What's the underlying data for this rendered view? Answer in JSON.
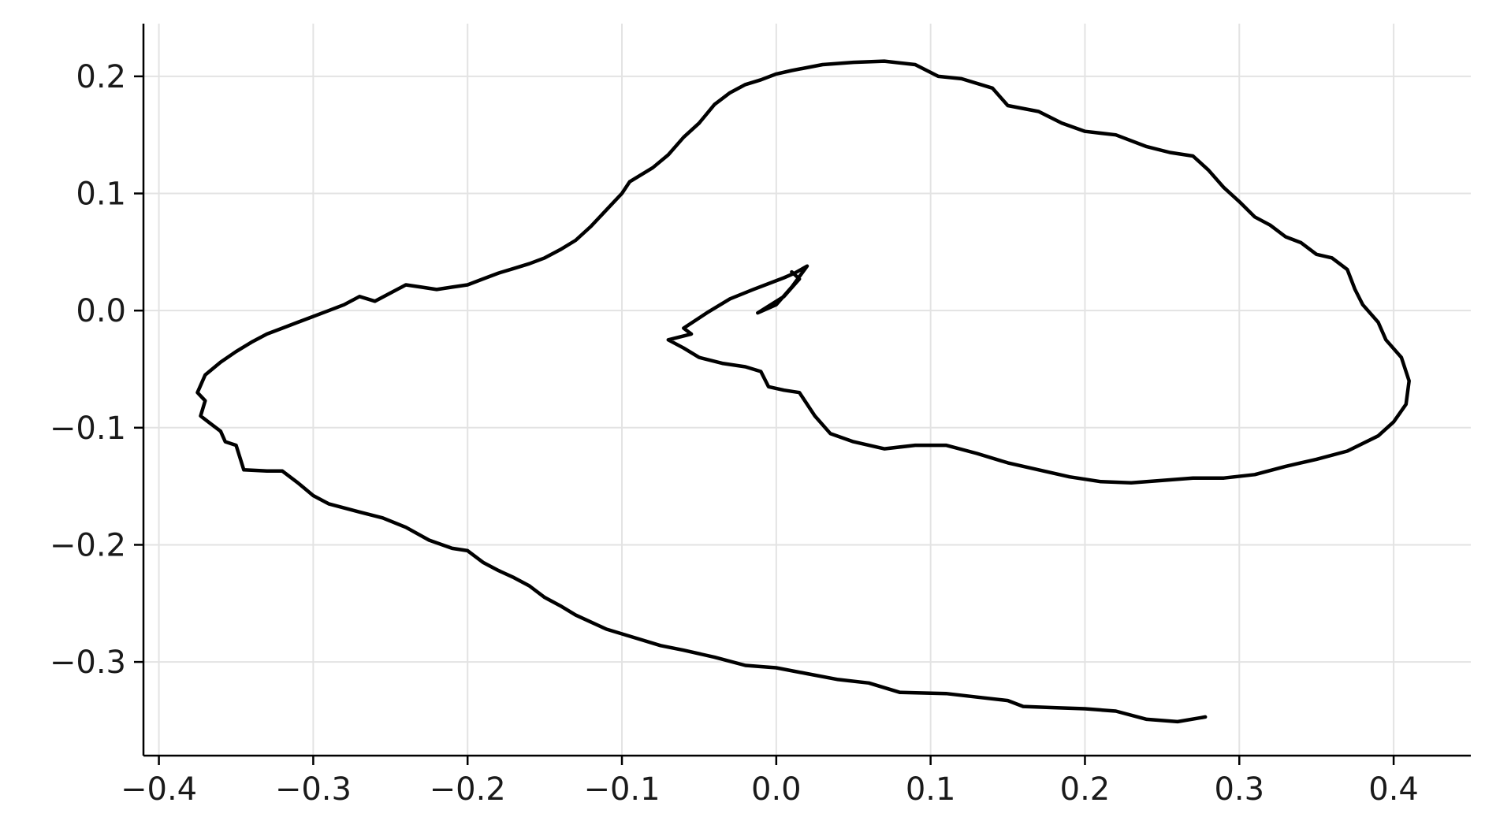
{
  "chart_data": {
    "type": "line",
    "title": "",
    "xlabel": "",
    "ylabel": "",
    "xlim": [
      -0.41,
      0.45
    ],
    "ylim": [
      -0.38,
      0.245
    ],
    "grid": true,
    "x_ticks": [
      -0.4,
      -0.3,
      -0.2,
      -0.1,
      0.0,
      0.1,
      0.2,
      0.3,
      0.4
    ],
    "x_tick_labels": [
      "−0.4",
      "−0.3",
      "−0.2",
      "−0.1",
      "0.0",
      "0.1",
      "0.2",
      "0.3",
      "0.4"
    ],
    "y_ticks": [
      -0.3,
      -0.2,
      -0.1,
      0.0,
      0.1,
      0.2
    ],
    "y_tick_labels": [
      "−0.3",
      "−0.2",
      "−0.1",
      "0.0",
      "0.1",
      "0.2"
    ],
    "series": [
      {
        "color": "#000000",
        "points": [
          [
            0.278,
            -0.347
          ],
          [
            0.26,
            -0.351
          ],
          [
            0.24,
            -0.349
          ],
          [
            0.22,
            -0.342
          ],
          [
            0.2,
            -0.34
          ],
          [
            0.18,
            -0.339
          ],
          [
            0.16,
            -0.338
          ],
          [
            0.15,
            -0.333
          ],
          [
            0.13,
            -0.33
          ],
          [
            0.11,
            -0.327
          ],
          [
            0.08,
            -0.326
          ],
          [
            0.06,
            -0.318
          ],
          [
            0.04,
            -0.315
          ],
          [
            0.02,
            -0.31
          ],
          [
            0.0,
            -0.305
          ],
          [
            -0.02,
            -0.303
          ],
          [
            -0.04,
            -0.296
          ],
          [
            -0.06,
            -0.29
          ],
          [
            -0.075,
            -0.286
          ],
          [
            -0.09,
            -0.28
          ],
          [
            -0.11,
            -0.272
          ],
          [
            -0.12,
            -0.266
          ],
          [
            -0.13,
            -0.26
          ],
          [
            -0.14,
            -0.252
          ],
          [
            -0.15,
            -0.245
          ],
          [
            -0.16,
            -0.235
          ],
          [
            -0.17,
            -0.228
          ],
          [
            -0.18,
            -0.222
          ],
          [
            -0.19,
            -0.215
          ],
          [
            -0.2,
            -0.205
          ],
          [
            -0.21,
            -0.203
          ],
          [
            -0.225,
            -0.196
          ],
          [
            -0.24,
            -0.185
          ],
          [
            -0.255,
            -0.177
          ],
          [
            -0.27,
            -0.172
          ],
          [
            -0.29,
            -0.165
          ],
          [
            -0.3,
            -0.158
          ],
          [
            -0.31,
            -0.147
          ],
          [
            -0.32,
            -0.137
          ],
          [
            -0.33,
            -0.137
          ],
          [
            -0.345,
            -0.136
          ],
          [
            -0.35,
            -0.115
          ],
          [
            -0.357,
            -0.112
          ],
          [
            -0.36,
            -0.103
          ],
          [
            -0.367,
            -0.096
          ],
          [
            -0.373,
            -0.09
          ],
          [
            -0.37,
            -0.077
          ],
          [
            -0.375,
            -0.07
          ],
          [
            -0.37,
            -0.055
          ],
          [
            -0.36,
            -0.044
          ],
          [
            -0.35,
            -0.035
          ],
          [
            -0.34,
            -0.027
          ],
          [
            -0.33,
            -0.02
          ],
          [
            -0.32,
            -0.015
          ],
          [
            -0.31,
            -0.01
          ],
          [
            -0.3,
            -0.005
          ],
          [
            -0.29,
            0.0
          ],
          [
            -0.28,
            0.005
          ],
          [
            -0.27,
            0.012
          ],
          [
            -0.26,
            0.008
          ],
          [
            -0.25,
            0.015
          ],
          [
            -0.24,
            0.022
          ],
          [
            -0.23,
            0.02
          ],
          [
            -0.22,
            0.018
          ],
          [
            -0.21,
            0.02
          ],
          [
            -0.2,
            0.022
          ],
          [
            -0.19,
            0.027
          ],
          [
            -0.18,
            0.032
          ],
          [
            -0.17,
            0.036
          ],
          [
            -0.16,
            0.04
          ],
          [
            -0.15,
            0.045
          ],
          [
            -0.14,
            0.052
          ],
          [
            -0.13,
            0.06
          ],
          [
            -0.12,
            0.072
          ],
          [
            -0.11,
            0.086
          ],
          [
            -0.1,
            0.1
          ],
          [
            -0.095,
            0.11
          ],
          [
            -0.08,
            0.122
          ],
          [
            -0.07,
            0.133
          ],
          [
            -0.06,
            0.148
          ],
          [
            -0.05,
            0.16
          ],
          [
            -0.04,
            0.176
          ],
          [
            -0.03,
            0.186
          ],
          [
            -0.02,
            0.193
          ],
          [
            -0.01,
            0.197
          ],
          [
            0.0,
            0.202
          ],
          [
            0.01,
            0.205
          ],
          [
            0.03,
            0.21
          ],
          [
            0.05,
            0.212
          ],
          [
            0.07,
            0.213
          ],
          [
            0.09,
            0.21
          ],
          [
            0.105,
            0.2
          ],
          [
            0.12,
            0.198
          ],
          [
            0.14,
            0.19
          ],
          [
            0.15,
            0.175
          ],
          [
            0.17,
            0.17
          ],
          [
            0.185,
            0.16
          ],
          [
            0.2,
            0.153
          ],
          [
            0.22,
            0.15
          ],
          [
            0.24,
            0.14
          ],
          [
            0.255,
            0.135
          ],
          [
            0.27,
            0.132
          ],
          [
            0.28,
            0.12
          ],
          [
            0.29,
            0.105
          ],
          [
            0.3,
            0.093
          ],
          [
            0.31,
            0.08
          ],
          [
            0.32,
            0.073
          ],
          [
            0.33,
            0.063
          ],
          [
            0.34,
            0.058
          ],
          [
            0.35,
            0.048
          ],
          [
            0.36,
            0.045
          ],
          [
            0.37,
            0.035
          ],
          [
            0.375,
            0.018
          ],
          [
            0.38,
            0.005
          ],
          [
            0.39,
            -0.01
          ],
          [
            0.395,
            -0.025
          ],
          [
            0.405,
            -0.04
          ],
          [
            0.41,
            -0.06
          ],
          [
            0.408,
            -0.08
          ],
          [
            0.4,
            -0.095
          ],
          [
            0.39,
            -0.107
          ],
          [
            0.37,
            -0.12
          ],
          [
            0.35,
            -0.127
          ],
          [
            0.33,
            -0.133
          ],
          [
            0.31,
            -0.14
          ],
          [
            0.29,
            -0.143
          ],
          [
            0.27,
            -0.143
          ],
          [
            0.25,
            -0.145
          ],
          [
            0.23,
            -0.147
          ],
          [
            0.21,
            -0.146
          ],
          [
            0.19,
            -0.142
          ],
          [
            0.17,
            -0.136
          ],
          [
            0.15,
            -0.13
          ],
          [
            0.13,
            -0.122
          ],
          [
            0.11,
            -0.115
          ],
          [
            0.09,
            -0.115
          ],
          [
            0.07,
            -0.118
          ],
          [
            0.05,
            -0.112
          ],
          [
            0.035,
            -0.105
          ],
          [
            0.025,
            -0.09
          ],
          [
            0.015,
            -0.07
          ],
          [
            0.005,
            -0.068
          ],
          [
            -0.005,
            -0.065
          ],
          [
            -0.01,
            -0.052
          ],
          [
            -0.02,
            -0.048
          ],
          [
            -0.035,
            -0.045
          ],
          [
            -0.05,
            -0.04
          ],
          [
            -0.06,
            -0.032
          ],
          [
            -0.07,
            -0.025
          ],
          [
            -0.055,
            -0.02
          ],
          [
            -0.06,
            -0.015
          ],
          [
            -0.045,
            -0.002
          ],
          [
            -0.03,
            0.01
          ],
          [
            -0.015,
            0.018
          ],
          [
            -0.005,
            0.023
          ],
          [
            0.005,
            0.028
          ],
          [
            0.012,
            0.032
          ],
          [
            0.02,
            0.038
          ],
          [
            0.01,
            0.02
          ],
          [
            0.0,
            0.005
          ],
          [
            -0.012,
            -0.002
          ],
          [
            0.005,
            0.012
          ],
          [
            0.015,
            0.027
          ],
          [
            0.01,
            0.033
          ]
        ]
      }
    ]
  }
}
